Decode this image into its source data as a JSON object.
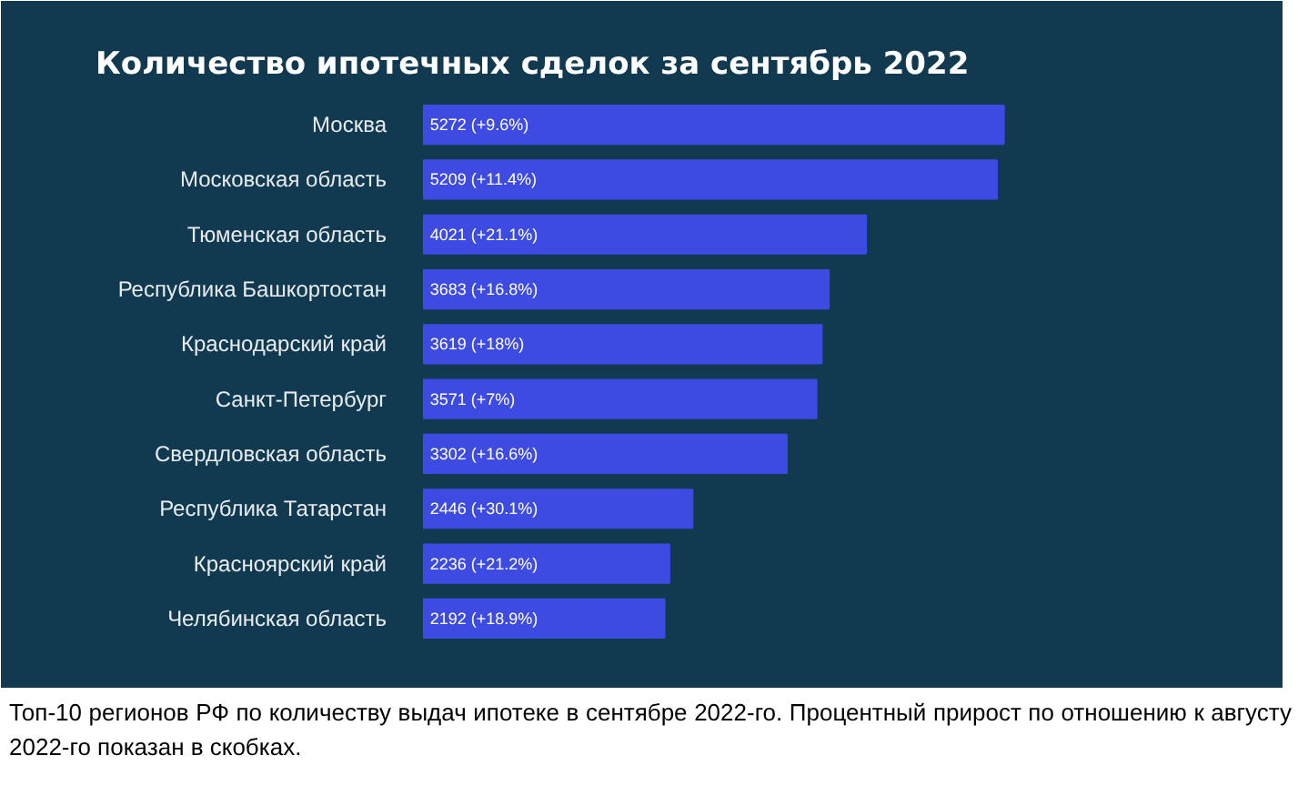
{
  "chart_data": {
    "type": "bar",
    "orientation": "horizontal",
    "title": "Количество ипотечных сделок за сентябрь 2022",
    "categories": [
      "Москва",
      "Московская область",
      "Тюменская область",
      "Республика Башкортостан",
      "Краснодарский край",
      "Санкт-Петербург",
      "Свердловская область",
      "Республика Татарстан",
      "Красноярский край",
      "Челябинская область"
    ],
    "values": [
      5272,
      5209,
      4021,
      3683,
      3619,
      3571,
      3302,
      2446,
      2236,
      2192
    ],
    "value_labels": [
      "5272 (+9.6%)",
      "5209 (+11.4%)",
      "4021 (+21.1%)",
      "3683 (+16.8%)",
      "3619 (+18%)",
      "3571 (+7%)",
      "3302 (+16.6%)",
      "2446 (+30.1%)",
      "2236 (+21.2%)",
      "2192 (+18.9%)"
    ],
    "color": "#3d4be3",
    "annotations": [
      "Топ-10 регионов РФ по количеству выдач ипотеке в сентябре 2022-го. Процентный прирост по отношению к августу 2022-го показан в скобках."
    ]
  }
}
